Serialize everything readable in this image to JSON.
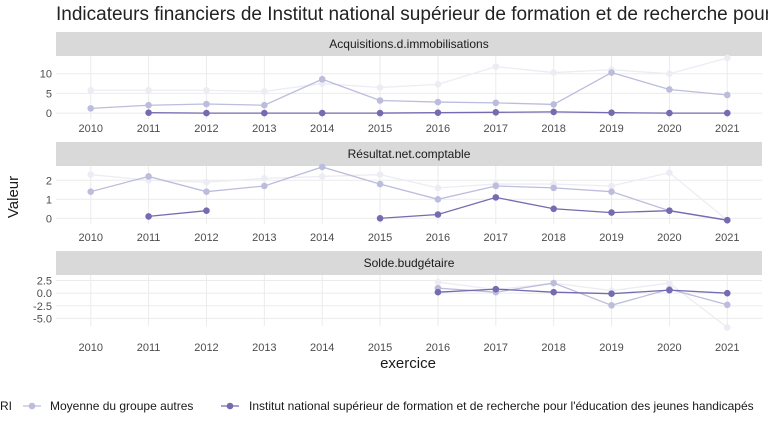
{
  "title": "Indicateurs financiers de Institut national supérieur de formation et de recherche pour l'éducation des jeunes handicapés",
  "colors": {
    "groupe": "#ececf4",
    "moyenne": "#bcbddc",
    "etab": "#756bb1"
  },
  "chart_data": {
    "type": "line",
    "xlabel": "exercice",
    "ylabel": "Valeur",
    "x": [
      2010,
      2011,
      2012,
      2013,
      2014,
      2015,
      2016,
      2017,
      2018,
      2019,
      2020,
      2021
    ],
    "legend": {
      "position": "bottom",
      "entries": [
        {
          "key": "groupe",
          "label": "RI"
        },
        {
          "key": "moyenne",
          "label": "Moyenne du groupe autres"
        },
        {
          "key": "etab",
          "label": "Institut national supérieur de formation et de recherche pour l'éducation des jeunes handicapés"
        }
      ]
    },
    "panels": [
      {
        "strip": "Acquisitions.d.immobilisations",
        "ylim": [
          -1.5,
          14.5
        ],
        "yticks": [
          0,
          5,
          10
        ],
        "series": [
          {
            "key": "groupe",
            "values": [
              5.8,
              5.8,
              5.8,
              5.5,
              7.5,
              6.5,
              7.3,
              11.8,
              10.3,
              11.0,
              10.0,
              14.0
            ]
          },
          {
            "key": "moyenne",
            "values": [
              1.2,
              2.0,
              2.3,
              2.0,
              8.6,
              3.2,
              2.8,
              2.6,
              2.2,
              10.3,
              6.0,
              4.6
            ]
          },
          {
            "key": "etab",
            "values": [
              null,
              0.1,
              0.0,
              0.0,
              0.0,
              0.0,
              0.1,
              0.2,
              0.3,
              0.1,
              0.0,
              0.0
            ]
          }
        ]
      },
      {
        "strip": "Résultat.net.comptable",
        "ylim": [
          -0.3,
          2.75
        ],
        "yticks": [
          0,
          1,
          2
        ],
        "series": [
          {
            "key": "groupe",
            "values": [
              2.3,
              2.0,
              1.9,
              2.1,
              2.2,
              2.3,
              1.6,
              1.8,
              1.8,
              1.7,
              2.4,
              -0.1
            ]
          },
          {
            "key": "moyenne",
            "values": [
              1.4,
              2.2,
              1.4,
              1.7,
              2.7,
              1.8,
              1.0,
              1.7,
              1.6,
              1.4,
              0.4,
              -0.1
            ]
          },
          {
            "key": "etab",
            "values": [
              null,
              0.1,
              0.4,
              null,
              null,
              0.0,
              0.2,
              1.1,
              0.5,
              0.3,
              0.4,
              -0.1
            ]
          }
        ]
      },
      {
        "strip": "Solde.budgétaire",
        "ylim": [
          -6.5,
          3.6
        ],
        "yticks": [
          -5.0,
          -2.5,
          0.0,
          2.5
        ],
        "ytick_labels": [
          "-5.0",
          "-2.5",
          "0.0",
          "2.5"
        ],
        "series": [
          {
            "key": "groupe",
            "values": [
              null,
              null,
              null,
              null,
              null,
              null,
              2.2,
              0.7,
              2.0,
              0.5,
              2.0,
              -6.8
            ]
          },
          {
            "key": "moyenne",
            "values": [
              null,
              null,
              null,
              null,
              null,
              null,
              1.0,
              0.2,
              2.0,
              -2.4,
              0.8,
              -2.3
            ]
          },
          {
            "key": "etab",
            "values": [
              null,
              null,
              null,
              null,
              null,
              null,
              0.2,
              0.8,
              0.2,
              -0.1,
              0.6,
              0.0
            ]
          }
        ]
      }
    ]
  }
}
